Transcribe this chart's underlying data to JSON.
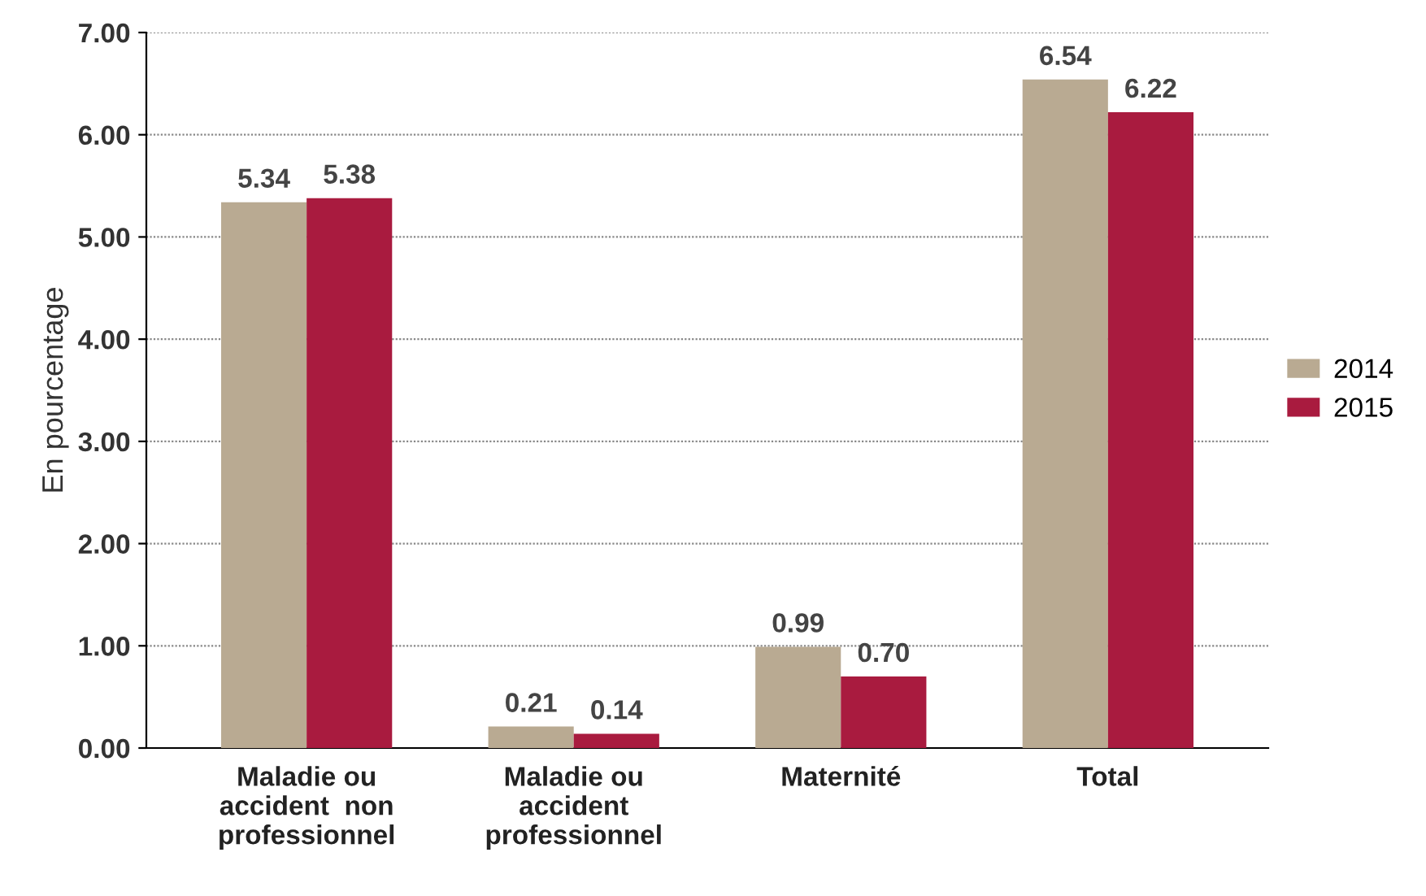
{
  "chart_data": {
    "type": "bar",
    "ylabel": "En pourcentage",
    "categories": [
      "Maladie ou\naccident  non\nprofessionnel",
      "Maladie ou\naccident\nprofessionnel",
      "Maternité",
      "Total"
    ],
    "series": [
      {
        "name": "2014",
        "color": "#b9aa92",
        "values": [
          5.34,
          0.21,
          0.99,
          6.54
        ],
        "value_labels": [
          "5.34",
          "0.21",
          "0.99",
          "6.54"
        ]
      },
      {
        "name": "2015",
        "color": "#a91b3f",
        "values": [
          5.38,
          0.14,
          0.7,
          6.22
        ],
        "value_labels": [
          "5.38",
          "0.14",
          "0.70",
          "6.22"
        ]
      }
    ],
    "ylim": [
      0,
      7
    ],
    "yticks": [
      {
        "value": 0,
        "label": "0.00"
      },
      {
        "value": 1,
        "label": "1.00"
      },
      {
        "value": 2,
        "label": "2.00"
      },
      {
        "value": 3,
        "label": "3.00"
      },
      {
        "value": 4,
        "label": "4.00"
      },
      {
        "value": 5,
        "label": "5.00"
      },
      {
        "value": 6,
        "label": "6.00"
      },
      {
        "value": 7,
        "label": "7.00"
      }
    ],
    "grid": "y",
    "legend": "right"
  }
}
